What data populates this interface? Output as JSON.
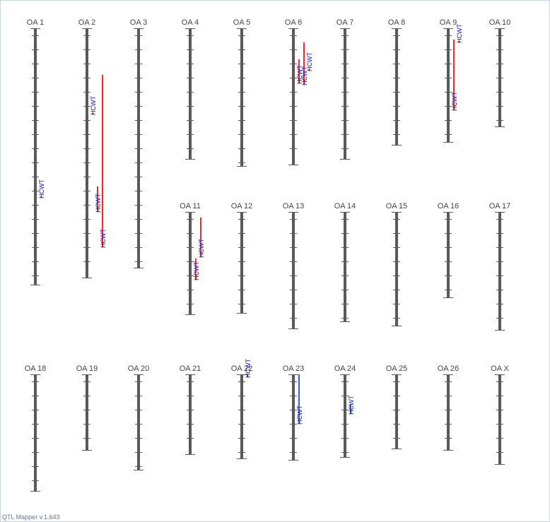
{
  "app": {
    "version_text": "QTL Mapper v.1.643"
  },
  "colors": {
    "chromosome": "#595959",
    "qtl_red": "#ee2a2a",
    "qtl_blue": "#2866cc",
    "label": "#1010b8"
  },
  "chromosomes": [
    {
      "name": "OA 1",
      "length": 9.1
    },
    {
      "name": "OA 2",
      "length": 8.85
    },
    {
      "name": "OA 3",
      "length": 8.5
    },
    {
      "name": "OA 4",
      "length": 4.65
    },
    {
      "name": "OA 5",
      "length": 4.9
    },
    {
      "name": "OA 6",
      "length": 4.85
    },
    {
      "name": "OA 7",
      "length": 4.65
    },
    {
      "name": "OA 8",
      "length": 4.15
    },
    {
      "name": "OA 9",
      "length": 4.05
    },
    {
      "name": "OA 10",
      "length": 3.5
    },
    {
      "name": "OA 11",
      "length": 3.65
    },
    {
      "name": "OA 12",
      "length": 3.6
    },
    {
      "name": "OA 13",
      "length": 4.15
    },
    {
      "name": "OA 14",
      "length": 3.9
    },
    {
      "name": "OA 15",
      "length": 4.05
    },
    {
      "name": "OA 16",
      "length": 3.05
    },
    {
      "name": "OA 17",
      "length": 4.2
    },
    {
      "name": "OA 18",
      "length": 4.15
    },
    {
      "name": "OA 19",
      "length": 2.7
    },
    {
      "name": "OA 20",
      "length": 3.4
    },
    {
      "name": "OA 21",
      "length": 2.85
    },
    {
      "name": "OA 22",
      "length": 3.0
    },
    {
      "name": "OA 23",
      "length": 3.05
    },
    {
      "name": "OA 24",
      "length": 2.95
    },
    {
      "name": "OA 25",
      "length": 2.65
    },
    {
      "name": "OA 26",
      "length": 2.7
    },
    {
      "name": "OA X",
      "length": 3.2
    }
  ],
  "qtls": [
    {
      "chromosome": "OA 1",
      "label": "HCWT",
      "start": 5.95,
      "end": 5.95,
      "color": "red",
      "lane": 0
    },
    {
      "chromosome": "OA 2",
      "label": "HCWT",
      "start": 3.0,
      "end": 3.0,
      "color": "red",
      "lane": 0
    },
    {
      "chromosome": "OA 2",
      "label": "HCWT",
      "start": 5.6,
      "end": 6.5,
      "color": "red",
      "lane": 1
    },
    {
      "chromosome": "OA 2",
      "label": "HCWT",
      "start": 1.65,
      "end": 7.75,
      "color": "red",
      "lane": 2
    },
    {
      "chromosome": "OA 6",
      "label": "HCWT",
      "start": 1.1,
      "end": 1.95,
      "color": "red",
      "lane": 0
    },
    {
      "chromosome": "OA 6",
      "label": "HCWT",
      "start": 0.5,
      "end": 2.0,
      "color": "red",
      "lane": 1
    },
    {
      "chromosome": "OA 6",
      "label": "HCWT",
      "start": 1.45,
      "end": 1.45,
      "color": "red",
      "lane": 2
    },
    {
      "chromosome": "OA 9",
      "label": "HCWT",
      "start": 0.4,
      "end": 2.9,
      "color": "red",
      "lane": 0
    },
    {
      "chromosome": "OA 9",
      "label": "HCWT",
      "start": 0.45,
      "end": 0.45,
      "color": "red",
      "lane": 1
    },
    {
      "chromosome": "OA 11",
      "label": "HCWT",
      "start": 1.65,
      "end": 2.4,
      "color": "red",
      "lane": 0
    },
    {
      "chromosome": "OA 11",
      "label": "HCWT",
      "start": 0.2,
      "end": 1.6,
      "color": "red",
      "lane": 1
    },
    {
      "chromosome": "OA 22",
      "label": "HCWT",
      "start": 0.0,
      "end": 0.1,
      "color": "blue",
      "lane": 0
    },
    {
      "chromosome": "OA 23",
      "label": "HCWT",
      "start": 0.0,
      "end": 1.75,
      "color": "blue",
      "lane": 0
    },
    {
      "chromosome": "OA 24",
      "label": "HCWT",
      "start": 1.05,
      "end": 1.4,
      "color": "blue",
      "lane": 0
    }
  ]
}
